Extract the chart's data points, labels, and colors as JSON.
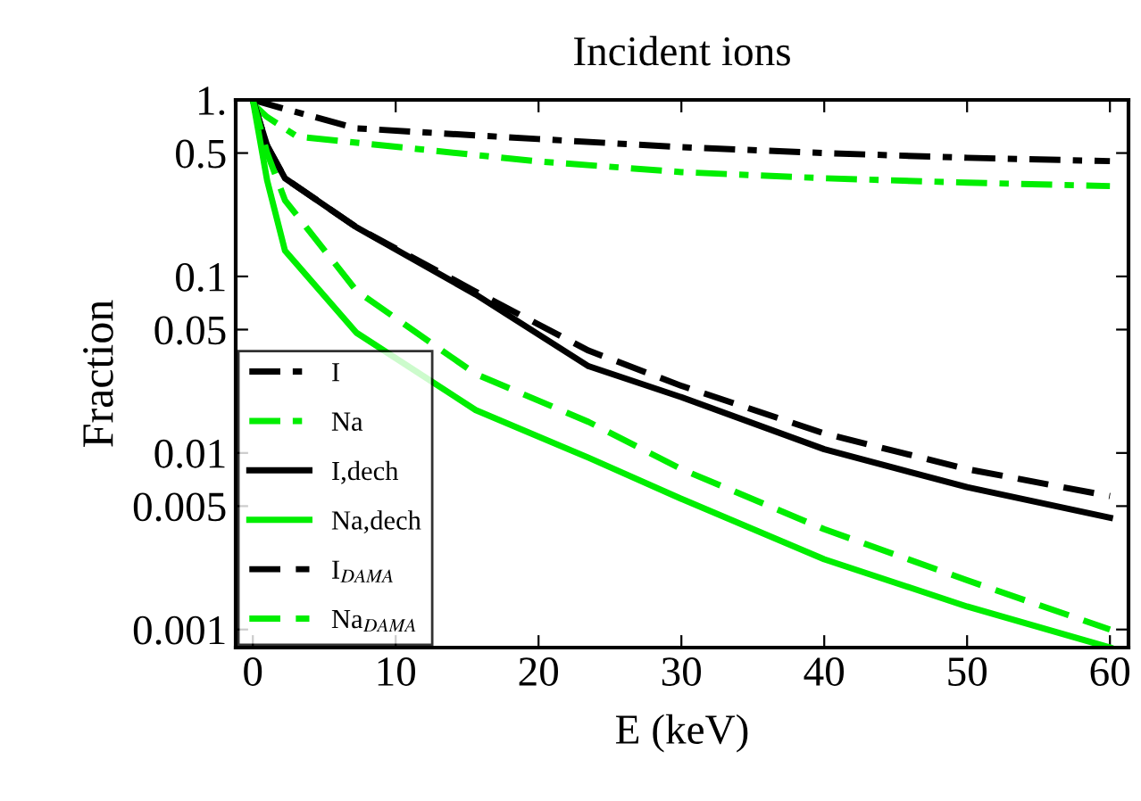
{
  "chart_data": {
    "type": "line",
    "title": "Incident ions",
    "xlabel": "E (keV)",
    "ylabel": "Fraction",
    "log": "y",
    "xlim": [
      -1.2,
      61.3
    ],
    "xticks": [
      0,
      10,
      20,
      30,
      40,
      50,
      60
    ],
    "ylim": [
      0.00079,
      1
    ],
    "yticks": [
      {
        "value": 1,
        "label": "1."
      },
      0.5,
      0.1,
      0.05,
      0.01,
      0.005,
      0.001
    ],
    "grid": false,
    "legend": "bottom left",
    "marker": "none",
    "series": [
      {
        "name": "I",
        "color": "#000000",
        "line_style": "dashdot",
        "x": [
          0,
          2,
          7.25,
          20,
          30,
          40,
          50,
          60
        ],
        "values": [
          1,
          0.9,
          0.69,
          0.6,
          0.54,
          0.5,
          0.47,
          0.45
        ]
      },
      {
        "name": "Na",
        "color": "#00ee00",
        "line_style": "dashdot",
        "x": [
          0,
          1,
          3.1,
          19.75,
          30,
          40,
          50,
          60
        ],
        "values": [
          0.95,
          0.8,
          0.62,
          0.45,
          0.39,
          0.36,
          0.34,
          0.325
        ]
      },
      {
        "name": "I,dech",
        "color": "#000000",
        "line_style": "solid",
        "x": [
          0,
          1,
          2.25,
          7.25,
          15.6,
          23.5,
          30,
          40,
          50,
          60
        ],
        "values": [
          1,
          0.55,
          0.36,
          0.19,
          0.079,
          0.031,
          0.0207,
          0.0105,
          0.0064,
          0.0043
        ]
      },
      {
        "name": "Na,dech",
        "color": "#00ee00",
        "line_style": "solid",
        "x": [
          0,
          1,
          2.25,
          7.25,
          15.6,
          23.5,
          30,
          40,
          50,
          60
        ],
        "values": [
          1,
          0.35,
          0.14,
          0.048,
          0.0175,
          0.0094,
          0.0055,
          0.0025,
          0.00135,
          0.00079
        ]
      },
      {
        "name": "I$_{DAMA}$",
        "color": "#000000",
        "line_style": "dashed",
        "x": [
          0,
          1,
          2.25,
          7.25,
          15.6,
          23.5,
          30,
          40,
          50,
          60
        ],
        "values": [
          1,
          0.55,
          0.36,
          0.19,
          0.082,
          0.038,
          0.024,
          0.0129,
          0.0081,
          0.0057
        ]
      },
      {
        "name": "Na$_{DAMA}$",
        "color": "#00ee00",
        "line_style": "dashed",
        "x": [
          0,
          1,
          2.25,
          7.25,
          15.6,
          23.5,
          30,
          40,
          50,
          60
        ],
        "values": [
          1,
          0.5,
          0.27,
          0.083,
          0.028,
          0.015,
          0.0081,
          0.0037,
          0.0019,
          0.001
        ]
      }
    ]
  }
}
